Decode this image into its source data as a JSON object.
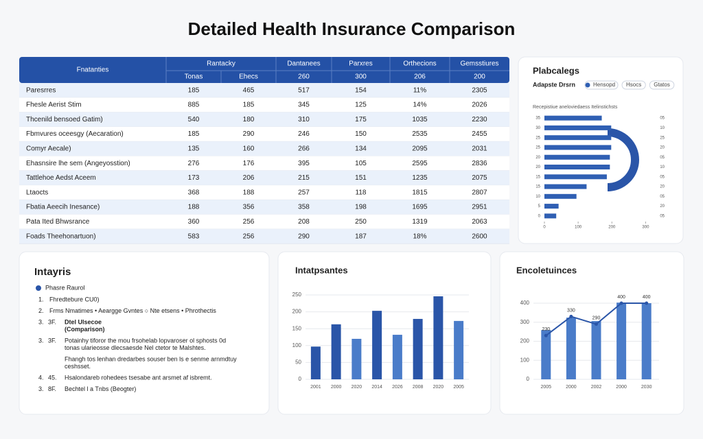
{
  "title": "Detailed Health Insurance Comparison",
  "table": {
    "header_top": [
      "Fnatanties",
      "Rantacky",
      "Dantanees",
      "Parxres",
      "Orthecions",
      "Gemsstiures"
    ],
    "header_sub": [
      "Tonas",
      "Ehecs",
      "260",
      "300",
      "206",
      "200"
    ],
    "rows": [
      [
        "Paresrres",
        "185",
        "465",
        "517",
        "154",
        "11%",
        "2305"
      ],
      [
        "Fhesle Aerist Stim",
        "885",
        "185",
        "345",
        "125",
        "14%",
        "2026"
      ],
      [
        "Thcenild bensoed Gatim)",
        "540",
        "180",
        "310",
        "175",
        "1035",
        "2230"
      ],
      [
        "Fbmvures oceesgy (Aecaration)",
        "185",
        "290",
        "246",
        "150",
        "2535",
        "2455"
      ],
      [
        "Comyr Aecale)",
        "135",
        "160",
        "266",
        "134",
        "2095",
        "2031"
      ],
      [
        "Ehasnsire lhe sem (Angeyosstion)",
        "276",
        "176",
        "395",
        "105",
        "2595",
        "2836"
      ],
      [
        "Tattlehoe Aedst Aceem",
        "173",
        "206",
        "215",
        "151",
        "1235",
        "2075"
      ],
      [
        "Ltaocts",
        "368",
        "188",
        "257",
        "118",
        "1815",
        "2807"
      ],
      [
        "Fbatia Aeecih Inesance)",
        "188",
        "356",
        "358",
        "198",
        "1695",
        "2951"
      ],
      [
        "Pata Ited Bhwsrance",
        "360",
        "256",
        "208",
        "250",
        "1319",
        "2063"
      ],
      [
        "Foads Theehonartuon)",
        "583",
        "256",
        "290",
        "187",
        "18%",
        "2600"
      ]
    ]
  },
  "list_panel": {
    "title": "Intayris",
    "legend": "Phasre Raurol",
    "items": [
      {
        "number": "1.",
        "lines": [
          "Fhredtebure CU0)"
        ]
      },
      {
        "number": "2.",
        "lines": [
          "Frms Nmatimes  •  Aeargge Gvntes  ○  Nte etsens  •  Phrothectis"
        ]
      },
      {
        "number": "3.",
        "code": "3F.",
        "lines": [
          "Dtel Ulsecoe",
          "(Comparison)"
        ]
      },
      {
        "number": "3.",
        "code": "3F.",
        "lines": [
          "Potainhy tiforor the mou frsohelab lopvaroser ol sphosts 0d",
          "tonas ularieosse dlecsaesde Nel ctetor te Malshtes."
        ]
      },
      {
        "lines": [
          "Fhangh tos lenhan dredarbes souser ben ls e senme arnmdtuy",
          "ceshsset."
        ]
      },
      {
        "number": "4.",
        "code": "45.",
        "lines": [
          "Hsalondareb rohedees tsesabe ant arsmet af isbremt."
        ]
      },
      {
        "number": "3.",
        "code": "8F.",
        "lines": [
          "Bechtel l a Tnbs (Beogter)"
        ]
      }
    ]
  },
  "chart_data": [
    {
      "type": "hbar",
      "title": "Plabcalegs",
      "subtitle": "Adapste Drsrn",
      "legend": [
        "Hensopd",
        "Hsocs",
        "Gtatos"
      ],
      "caption": "Recepistiue aneloviedaess Itelinstichsts",
      "categories": [
        "35",
        "30",
        "25",
        "25",
        "20",
        "20",
        "15",
        "15",
        "10",
        "5",
        "0"
      ],
      "right_labels": [
        "05",
        "10",
        "25",
        "20",
        "05",
        "10",
        "05",
        "20",
        "05",
        "20",
        "05"
      ],
      "values": [
        170,
        198,
        198,
        198,
        194,
        194,
        185,
        125,
        95,
        42,
        35
      ],
      "color": "#2f5fb3",
      "xlim": [
        0,
        350
      ],
      "xticks": [
        0,
        100,
        200,
        300
      ]
    },
    {
      "type": "bar",
      "title": "Intatpsantes",
      "categories": [
        "2001",
        "2000",
        "2020",
        "2014",
        "2026",
        "2008",
        "2020",
        "2005"
      ],
      "values": [
        97,
        163,
        120,
        203,
        132,
        179,
        246,
        173
      ],
      "colors": [
        "#2a55a8",
        "#2a55a8",
        "#4a7cc9",
        "#2a55a8",
        "#4a7cc9",
        "#2a55a8",
        "#2a55a8",
        "#4a7cc9"
      ],
      "ylim": [
        0,
        250
      ],
      "yticks": [
        0,
        50,
        100,
        150,
        200,
        250
      ],
      "grid": true
    },
    {
      "type": "combo",
      "title": "Encoletuinces",
      "categories": [
        "2005",
        "2000",
        "2002",
        "2000",
        "2030"
      ],
      "series": [
        {
          "type": "bar",
          "color": "#4a7cc9",
          "values": [
            259,
            324,
            306,
            403,
            400
          ]
        },
        {
          "type": "line",
          "color": "#2a55a8",
          "values": [
            230,
            330,
            290,
            400,
            400
          ]
        }
      ],
      "ylim": [
        0,
        400
      ],
      "yticks": [
        0,
        100,
        200,
        300,
        400
      ],
      "grid": true
    }
  ]
}
